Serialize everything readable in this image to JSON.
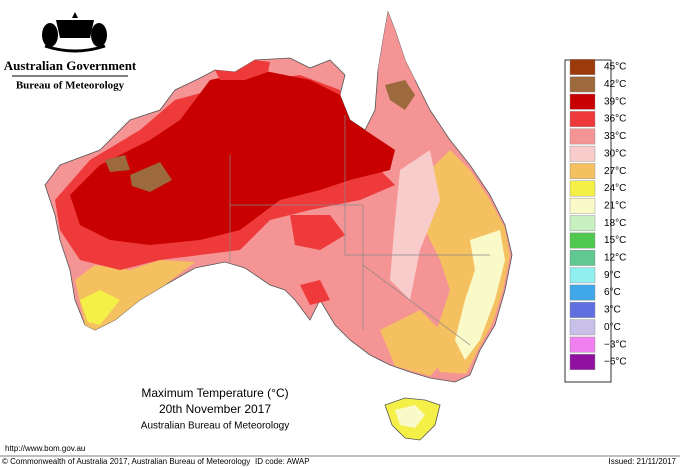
{
  "header": {
    "government": "Australian Government",
    "bureau": "Bureau of Meteorology"
  },
  "legend": {
    "items": [
      {
        "label": "45°C",
        "color": "#9c3a0c"
      },
      {
        "label": "42°C",
        "color": "#9c6a3c"
      },
      {
        "label": "39°C",
        "color": "#c80000"
      },
      {
        "label": "36°C",
        "color": "#ee3a3a"
      },
      {
        "label": "33°C",
        "color": "#f59494"
      },
      {
        "label": "30°C",
        "color": "#f9cccc"
      },
      {
        "label": "27°C",
        "color": "#f5c060"
      },
      {
        "label": "24°C",
        "color": "#f5f048"
      },
      {
        "label": "21°C",
        "color": "#fafac8"
      },
      {
        "label": "18°C",
        "color": "#c8f0c0"
      },
      {
        "label": "15°C",
        "color": "#50c850"
      },
      {
        "label": "12°C",
        "color": "#60c890"
      },
      {
        "label": "9°C",
        "color": "#90f0f0"
      },
      {
        "label": "6°C",
        "color": "#40a8e8"
      },
      {
        "label": "3°C",
        "color": "#6070e0"
      },
      {
        "label": "0°C",
        "color": "#c8c0e8"
      },
      {
        "label": "−3°C",
        "color": "#f080f0"
      },
      {
        "label": "−6°C",
        "color": "#9010a0"
      }
    ]
  },
  "caption": {
    "title": "Maximum Temperature (°C)",
    "date": "20th November 2017",
    "agency": "Australian Bureau of Meteorology"
  },
  "footer": {
    "url": "http://www.bom.gov.au",
    "copyright": "© Commonwealth of Australia 2017, Australian Bureau of Meteorology",
    "id": "ID code: AWAP",
    "issued": "Issued: 21/11/2017"
  }
}
